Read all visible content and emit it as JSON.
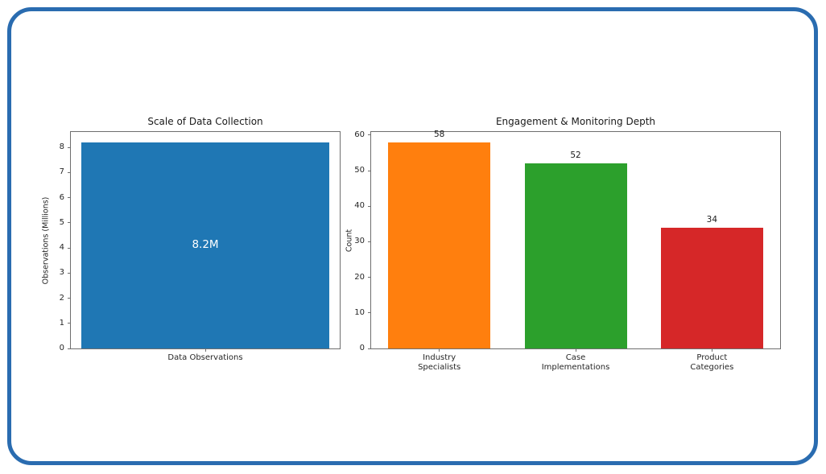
{
  "frame": {
    "border_color": "#2a6cb0",
    "background": "#ffffff"
  },
  "chart_data": [
    {
      "type": "bar",
      "title": "Scale of Data Collection",
      "xlabel": "",
      "ylabel": "Observations (Millions)",
      "categories": [
        "Data Observations"
      ],
      "values": [
        8.2
      ],
      "value_labels": [
        "8.2M"
      ],
      "value_label_position": "center",
      "value_label_color": "#ffffff",
      "bar_colors": [
        "#1f77b4"
      ],
      "yticks": [
        0,
        1,
        2,
        3,
        4,
        5,
        6,
        7,
        8
      ],
      "ylim": [
        0,
        8.61
      ],
      "bar_width_frac": 0.92,
      "grid": false,
      "legend": null
    },
    {
      "type": "bar",
      "title": "Engagement & Monitoring Depth",
      "xlabel": "",
      "ylabel": "Count",
      "categories": [
        "Industry\nSpecialists",
        "Case\nImplementations",
        "Product\nCategories"
      ],
      "values": [
        58,
        52,
        34
      ],
      "value_labels": [
        "58",
        "52",
        "34"
      ],
      "value_label_position": "above",
      "value_label_color": "#1a1a1a",
      "bar_colors": [
        "#ff7f0e",
        "#2ca02c",
        "#d62728"
      ],
      "yticks": [
        0,
        10,
        20,
        30,
        40,
        50,
        60
      ],
      "ylim": [
        0,
        60.9
      ],
      "bar_width_frac": 0.75,
      "grid": false,
      "legend": null
    }
  ]
}
